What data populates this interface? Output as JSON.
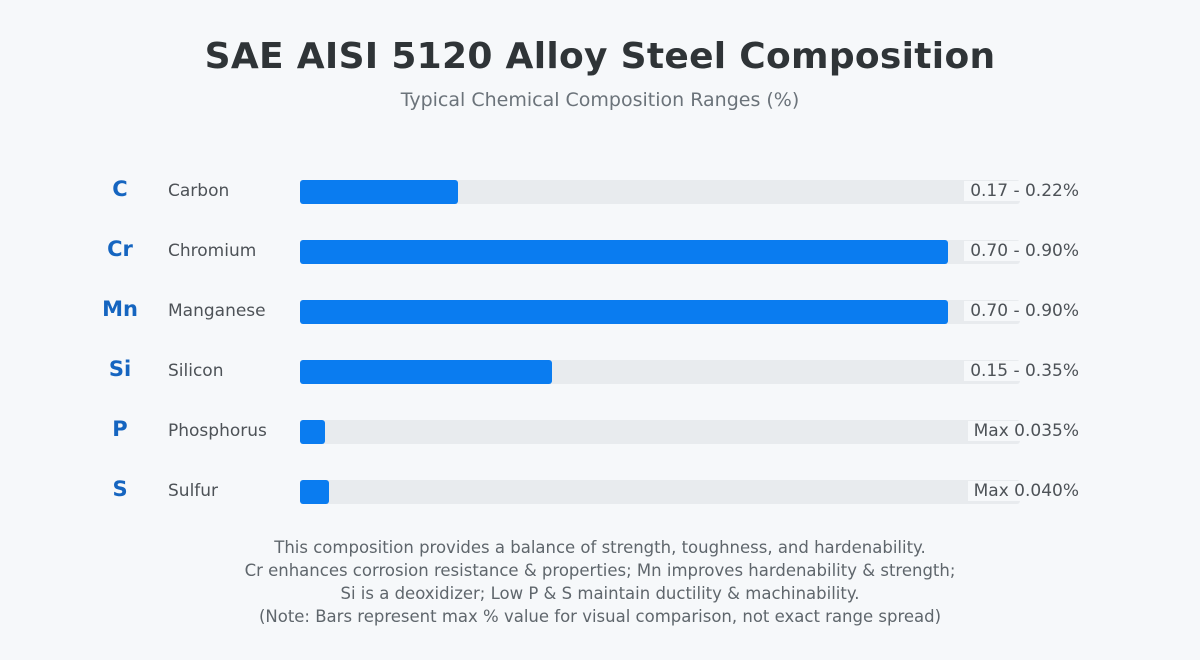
{
  "title": "SAE AISI 5120 Alloy Steel Composition",
  "subtitle": "Typical Chemical Composition Ranges (%)",
  "colors": {
    "bar": "#0a7cf0",
    "track": "#e8ebee",
    "symbol": "#1565c0"
  },
  "elements": [
    {
      "symbol": "C",
      "name": "Carbon",
      "range": "0.17 - 0.22%"
    },
    {
      "symbol": "Cr",
      "name": "Chromium",
      "range": "0.70 - 0.90%"
    },
    {
      "symbol": "Mn",
      "name": "Manganese",
      "range": "0.70 - 0.90%"
    },
    {
      "symbol": "Si",
      "name": "Silicon",
      "range": "0.15 - 0.35%"
    },
    {
      "symbol": "P",
      "name": "Phosphorus",
      "range": "Max 0.035%"
    },
    {
      "symbol": "S",
      "name": "Sulfur",
      "range": "Max 0.040%"
    }
  ],
  "notes": [
    "This composition provides a balance of strength, toughness, and hardenability.",
    "Cr enhances corrosion resistance & properties; Mn improves hardenability & strength;",
    "Si is a deoxidizer; Low P & S maintain ductility & machinability.",
    "(Note: Bars represent max % value for visual comparison, not exact range spread)"
  ],
  "chart_data": {
    "type": "bar",
    "orientation": "horizontal",
    "categories": [
      "Carbon",
      "Chromium",
      "Manganese",
      "Silicon",
      "Phosphorus",
      "Sulfur"
    ],
    "values": [
      0.22,
      0.9,
      0.9,
      0.35,
      0.035,
      0.04
    ],
    "xlim": [
      0,
      1.0
    ],
    "grid": false
  }
}
